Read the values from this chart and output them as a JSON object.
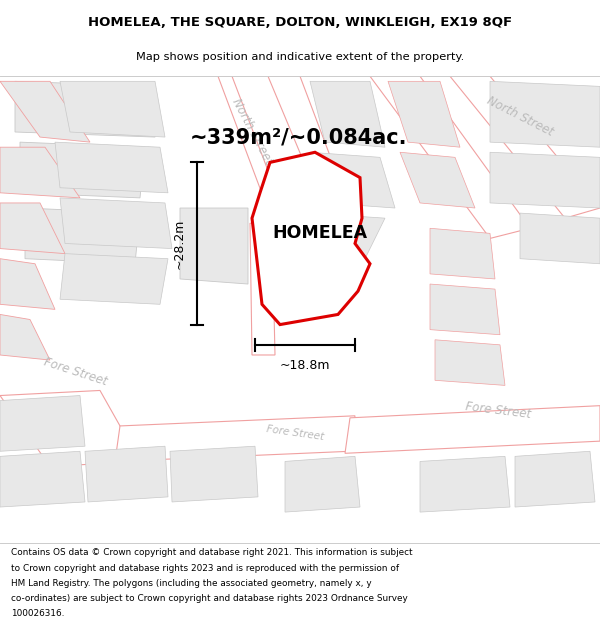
{
  "title_line1": "HOMELEA, THE SQUARE, DOLTON, WINKLEIGH, EX19 8QF",
  "title_line2": "Map shows position and indicative extent of the property.",
  "area_text": "~339m²/~0.084ac.",
  "property_label": "HOMELEA",
  "dim_vertical": "~28.2m",
  "dim_horizontal": "~18.8m",
  "footer_text": "Contains OS data © Crown copyright and database right 2021. This information is subject to Crown copyright and database rights 2023 and is reproduced with the permission of HM Land Registry. The polygons (including the associated geometry, namely x, y co-ordinates) are subject to Crown copyright and database rights 2023 Ordnance Survey 100026316.",
  "map_bg": "#ffffff",
  "road_outline_color": "#f0a0a0",
  "building_fill": "#e8e8e8",
  "building_edge": "#c8c8c8",
  "property_fill": "#ffffff",
  "property_edge": "#dd0000",
  "street_label_color": "#bbbbbb",
  "road_fill": "#ffffff"
}
